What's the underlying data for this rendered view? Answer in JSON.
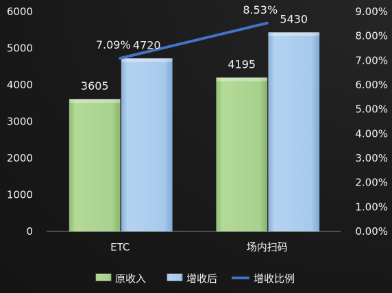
{
  "colors": {
    "original": "#a9d18e",
    "increased": "#9dc3e6",
    "ratio_line": "#4472c4",
    "text": "#f2f2f2",
    "axis": "#7f7f7f"
  },
  "chart_data": {
    "type": "bar",
    "categories": [
      "ETC",
      "场内扫码"
    ],
    "series": [
      {
        "name": "原收入",
        "type": "bar",
        "axis": "left",
        "values": [
          3605,
          4195
        ]
      },
      {
        "name": "增收后",
        "type": "bar",
        "axis": "left",
        "values": [
          4720,
          5430
        ]
      },
      {
        "name": "增收比例",
        "type": "line",
        "axis": "right",
        "values": [
          0.0709,
          0.0853
        ],
        "labels": [
          "7.09%",
          "8.53%"
        ]
      }
    ],
    "bar_values": [
      3605,
      4195,
      4720,
      5430
    ],
    "y_left": {
      "min": 0,
      "max": 6000,
      "step": 1000,
      "ticks": [
        "0",
        "1000",
        "2000",
        "3000",
        "4000",
        "5000",
        "6000"
      ]
    },
    "y_right": {
      "min": 0,
      "max": 0.09,
      "step": 0.01,
      "ticks": [
        "0.00%",
        "1.00%",
        "2.00%",
        "3.00%",
        "4.00%",
        "5.00%",
        "6.00%",
        "7.00%",
        "8.00%",
        "9.00%"
      ]
    },
    "grid": false,
    "legend_position": "bottom"
  }
}
